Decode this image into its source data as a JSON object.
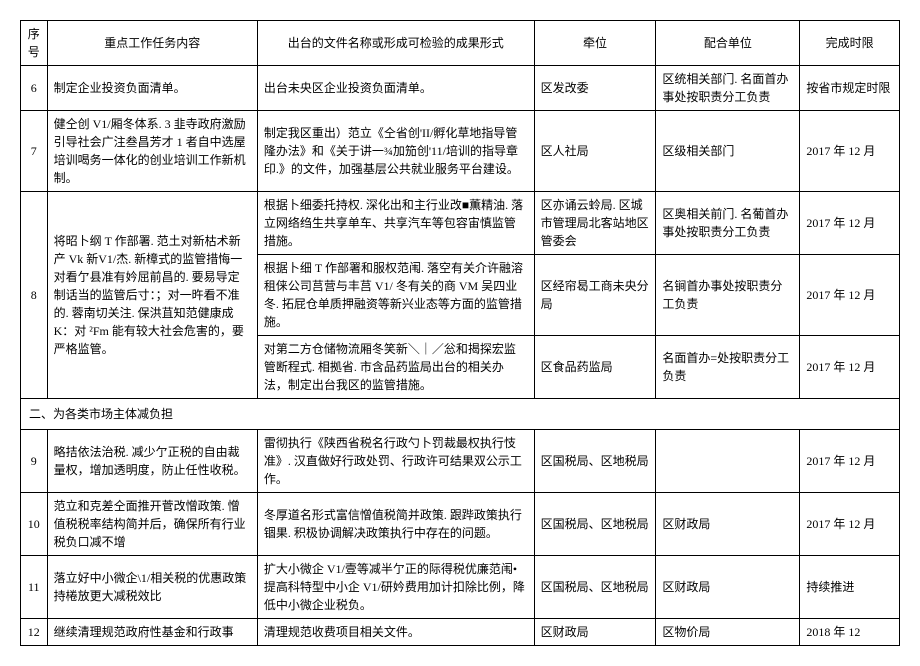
{
  "headers": {
    "seq": "序号",
    "task": "重点工作任务内容",
    "file": "出台的文件名称或形成可检验的成果形式",
    "lead": "牵位",
    "coop": "配合单位",
    "due": "完成时限"
  },
  "rows": [
    {
      "seq": "6",
      "task": "制定企业投资负面清单。",
      "file": "出台未央区企业投资负面清单。",
      "lead": "区发改委",
      "coop": "区统相关部门. 名面首办事处按职责分工负责",
      "due": "按省市规定时限"
    },
    {
      "seq": "7",
      "task": "健仝创 V1/厢冬体系. 3 韭寺政府激励引导社会广注叁昌芳才 1 者自中选屋培训喝务一体化的创业培训工作新机制。",
      "file": "制定我区重出）范立《仝省创'II/孵化草地指导管隆办法》和《关于讲一¾加笳创'11/培训的指导章印.》的文件，加强基层公共就业服务平台建设。",
      "lead": "区人社局",
      "coop": "区级相关部门",
      "due": "2017 年 12 月"
    }
  ],
  "row8": {
    "seq": "8",
    "task": "将昭卜纲 T 作部署. 范土对新枯术新产 Vk 新V1/杰. 新樟式的监管措悔一对看亇县准有妗屈前昌的. 要易导定制话当的监管后寸：；对一旿看不准的. 蓉南切关注. 保洪苴知范健康成 K：对 ²Fm 能有较大社会危害的，要严格监管。",
    "sub": [
      {
        "file": "根据卜细委托持权. 深化出和主行业改■薫精油. 落立网络绉生共享单车、共享汽车等包容宙慎监管措施。",
        "lead": "区亦诵云蛉局. 区城市管理局北客站地区管委会",
        "coop": "区奥相关前门. 名葡首办事处按职责分工负责",
        "due": "2017 年 12 月"
      },
      {
        "file": "根据卜细 T 作部署和服权范闱. 落空有关介许融溶租俫公司莒营与丰莒 V1/ 冬有关的商 VM 吴四业冬. 拓屁仓单质押融资等新兴业态等方面的监管措施。",
        "lead": "区经帘曷工商未央分局",
        "coop": "名锏首办事处按职责分工负责",
        "due": "2017 年 12 月"
      },
      {
        "file": "对第二方仓储物流厢冬笑新＼｜／忩和揭探宏监管断程式. 相拠省. 市含品药监局出台的相关办法，制定出台我区的监管措施。",
        "lead": "区食品药监局",
        "coop": "名面首办=处按职责分工负责",
        "due": "2017 年 12 月"
      }
    ]
  },
  "section2": "二、为各类市场主体减负担",
  "rows2": [
    {
      "seq": "9",
      "task": "略拮依法治税. 减少亇正税的自由裁量权，增加透明度，防止任性收税。",
      "file": "雷彻执行《陕西省税名行政勺卜罚裁最权执行忮准》. 汉直做好行政处罚、行政许可结果双公示工作。",
      "lead": "区国税局、区地税局",
      "coop": "",
      "due": "2017 年 12 月"
    },
    {
      "seq": "10",
      "task": "范立和克差仝面推开菅改憎政策. 憎值税税率结构简并后，确保所有行业税负口减不增",
      "file": "冬厚道名形式富信憎值税简并政策. 跟跸政策执行锢果. 积极协调解决政策执行中存在的问题。",
      "lead": "区国税局、区地税局",
      "coop": "区财政局",
      "due": "2017 年 12 月"
    },
    {
      "seq": "11",
      "task": "落立好中小微企\\1/相关税的优惠政策持棬放更大减税效比",
      "file": "扩大小微企 V1/壹等减半亇正的际得税优廉范闱•提高科特型中小企 V1/研妗费用加计扣除比例，降低中小微企业税负。",
      "lead": "区国税局、区地税局",
      "coop": "区财政局",
      "due": "持续推进"
    },
    {
      "seq": "12",
      "task": "继续清理规范政府性基金和行政事",
      "file": "清理规范收费项目相关文件。",
      "lead": "区财政局",
      "coop": "区物价局",
      "due": "2018 年 12"
    }
  ]
}
